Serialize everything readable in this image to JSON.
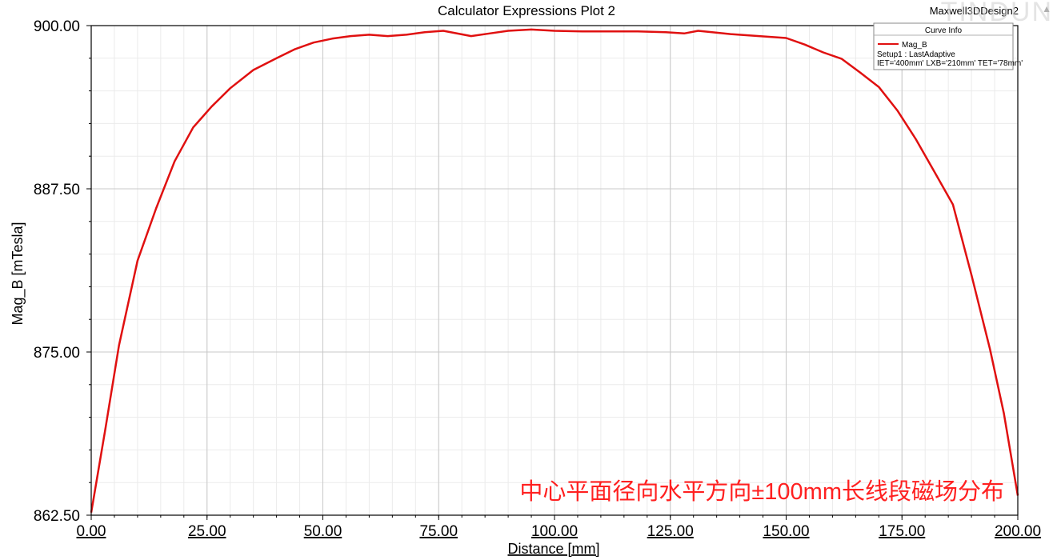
{
  "title": "Calculator Expressions Plot 2",
  "design_name": "Maxwell3DDesign2",
  "watermark": "TINDUN",
  "corner_mark": "▲",
  "legend": {
    "header": "Curve Info",
    "series_name": "Mag_B",
    "line1": "Setup1 : LastAdaptive",
    "line2": "IET='400mm' LXB='210mm' TET='78mm'"
  },
  "annotation": "中心平面径向水平方向±100mm长线段磁场分布",
  "colors": {
    "curve": "#e01010",
    "annotation": "#ff2020",
    "grid": "#c8c8c8",
    "grid_minor": "#ebebeb"
  },
  "chart_data": {
    "type": "line",
    "title": "Calculator Expressions Plot 2",
    "xlabel": "Distance [mm]",
    "ylabel": "Mag_B [mTesla]",
    "xlim": [
      0,
      200
    ],
    "ylim": [
      862.5,
      900
    ],
    "x_ticks": [
      "0.00",
      "25.00",
      "50.00",
      "75.00",
      "100.00",
      "125.00",
      "150.00",
      "175.00",
      "200.00"
    ],
    "y_ticks": [
      "862.50",
      "875.00",
      "887.50",
      "900.00"
    ],
    "x_tick_values": [
      0,
      25,
      50,
      75,
      100,
      125,
      150,
      175,
      200
    ],
    "y_tick_values": [
      862.5,
      875,
      887.5,
      900
    ],
    "grid": true,
    "legend_position": "top-right",
    "series": [
      {
        "name": "Mag_B",
        "x": [
          0,
          3,
          6,
          10,
          14,
          18,
          22,
          26,
          30,
          35,
          40,
          44,
          48,
          52,
          56,
          60,
          64,
          68,
          72,
          76,
          82,
          86,
          90,
          95,
          100,
          106,
          112,
          118,
          124,
          128,
          131,
          134,
          138,
          142,
          146,
          150,
          154,
          158,
          162,
          166,
          170,
          174,
          178,
          182,
          186,
          190,
          194,
          197,
          200
        ],
        "y": [
          862.7,
          869.0,
          875.5,
          882.0,
          886.0,
          889.6,
          892.2,
          893.8,
          895.2,
          896.6,
          897.5,
          898.2,
          898.7,
          899.0,
          899.2,
          899.3,
          899.2,
          899.3,
          899.5,
          899.6,
          899.2,
          899.4,
          899.6,
          899.7,
          899.6,
          899.55,
          899.55,
          899.55,
          899.5,
          899.4,
          899.6,
          899.5,
          899.35,
          899.25,
          899.15,
          899.05,
          898.55,
          897.95,
          897.45,
          896.4,
          895.3,
          893.5,
          891.3,
          888.8,
          886.3,
          880.9,
          875.2,
          870.3,
          864.0
        ]
      }
    ]
  }
}
